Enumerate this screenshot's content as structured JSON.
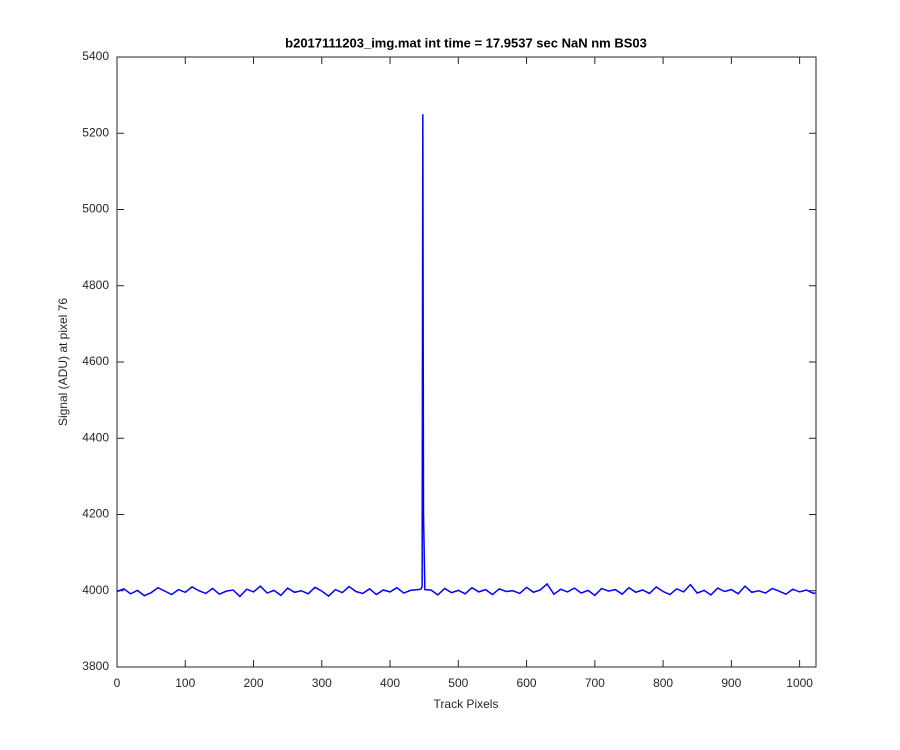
{
  "chart_data": {
    "type": "line",
    "title": "b2017111203_img.mat int time = 17.9537 sec  NaN nm BS03",
    "x_label": "Track Pixels",
    "y_label": "Signal (ADU) at pixel 76",
    "x": [
      0,
      10,
      20,
      30,
      40,
      50,
      60,
      70,
      80,
      90,
      100,
      110,
      120,
      130,
      140,
      150,
      160,
      170,
      180,
      190,
      200,
      210,
      220,
      230,
      240,
      250,
      260,
      270,
      280,
      290,
      300,
      310,
      320,
      330,
      340,
      350,
      360,
      370,
      380,
      390,
      400,
      410,
      420,
      430,
      440,
      445,
      447,
      448,
      449,
      451,
      460,
      470,
      480,
      490,
      500,
      510,
      520,
      530,
      540,
      550,
      560,
      570,
      580,
      590,
      600,
      610,
      620,
      630,
      640,
      650,
      660,
      670,
      680,
      690,
      700,
      710,
      720,
      730,
      740,
      750,
      760,
      770,
      780,
      790,
      800,
      810,
      820,
      830,
      840,
      850,
      860,
      870,
      880,
      890,
      900,
      910,
      920,
      930,
      940,
      950,
      960,
      970,
      980,
      990,
      1000,
      1010,
      1020,
      1023
    ],
    "series": [
      {
        "color": "#0000ff",
        "values": [
          3998,
          4005,
          3992,
          4001,
          3987,
          3995,
          4008,
          3999,
          3990,
          4003,
          3996,
          4010,
          4000,
          3993,
          4006,
          3991,
          3999,
          4002,
          3985,
          4004,
          3997,
          4012,
          3994,
          4001,
          3988,
          4007,
          3996,
          4000,
          3992,
          4009,
          3999,
          3986,
          4003,
          3995,
          4011,
          3998,
          3993,
          4005,
          3990,
          4002,
          3997,
          4008,
          3994,
          4001,
          4003,
          4004,
          4010,
          5250,
          4200,
          4003,
          4002,
          3989,
          4006,
          3995,
          4001,
          3992,
          4008,
          3997,
          4003,
          3990,
          4005,
          3998,
          4000,
          3993,
          4009,
          3996,
          4002,
          4018,
          3991,
          4004,
          3997,
          4007,
          3994,
          4001,
          3988,
          4006,
          3999,
          4003,
          3991,
          4008,
          3996,
          4002,
          3993,
          4010,
          3998,
          3990,
          4005,
          3997,
          4016,
          3994,
          4001,
          3989,
          4007,
          3998,
          4003,
          3992,
          4012,
          3996,
          4000,
          3994,
          4006,
          3999,
          3991,
          4004,
          3997,
          4002,
          3993,
          3995
        ]
      }
    ],
    "xlim": [
      0,
      1024
    ],
    "ylim": [
      3800,
      5400
    ],
    "xticks": [
      0,
      100,
      200,
      300,
      400,
      500,
      600,
      700,
      800,
      900,
      1000
    ],
    "yticks": [
      3800,
      4000,
      4200,
      4400,
      4600,
      4800,
      5000,
      5200,
      5400
    ]
  }
}
